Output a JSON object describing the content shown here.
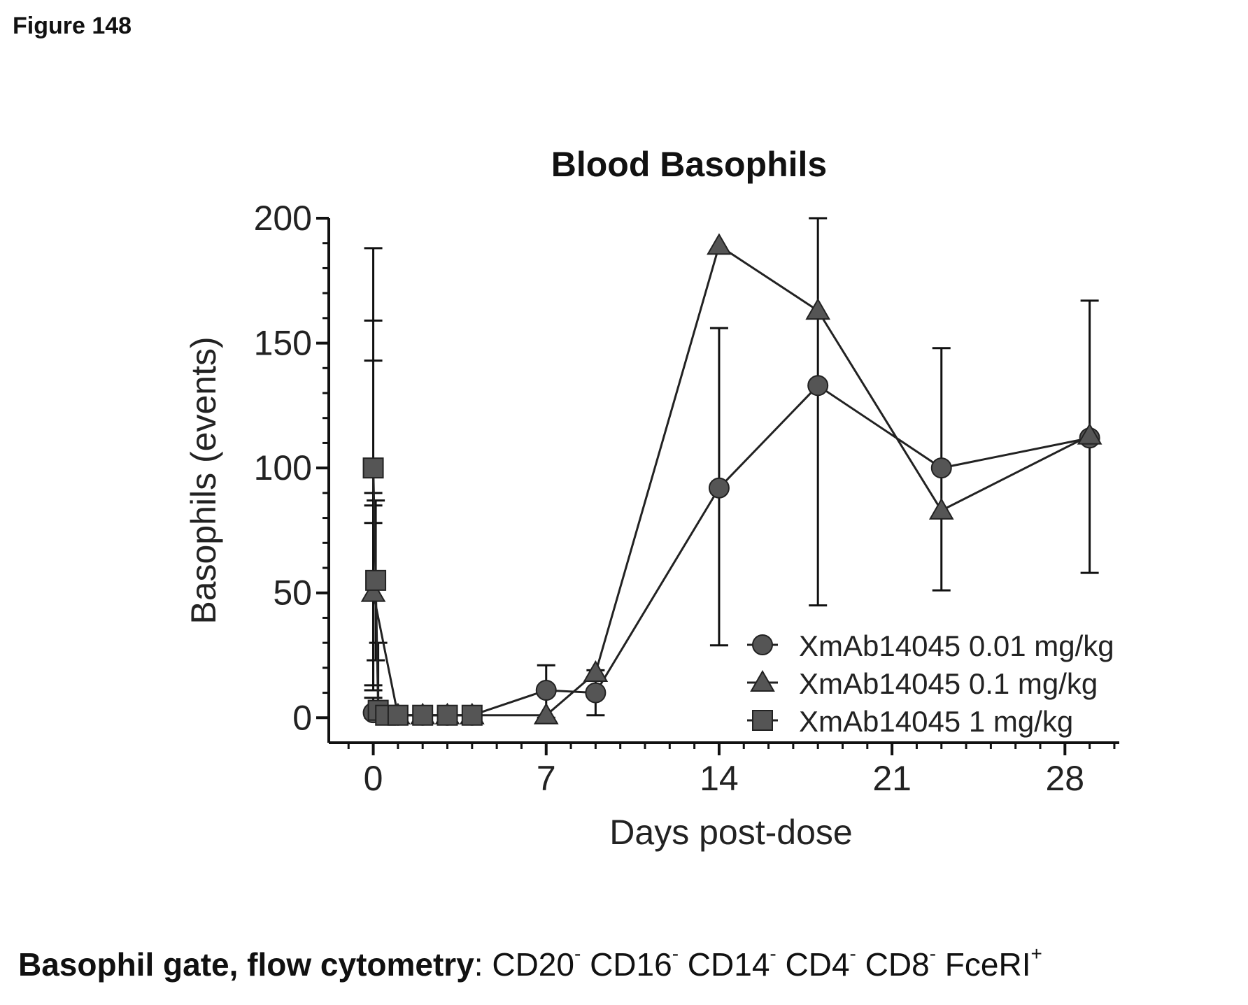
{
  "figure_label": "Figure 148",
  "chart_data": {
    "type": "line",
    "title": "Blood Basophils",
    "xlabel": "Days post-dose",
    "ylabel": "Basophils (events)",
    "xlim": [
      -1.8,
      30.2
    ],
    "ylim": [
      -10,
      200
    ],
    "xticks": [
      0,
      7,
      14,
      21,
      28
    ],
    "xtick_labels": [
      "0",
      "7",
      "14",
      "21",
      "28"
    ],
    "yticks": [
      0,
      50,
      100,
      150,
      200
    ],
    "ytick_labels": [
      "0",
      "50",
      "100",
      "150",
      "200"
    ],
    "legend_position": "bottom-right",
    "series": [
      {
        "name": "XmAb14045 0.01 mg/kg",
        "marker": "circle",
        "points": [
          {
            "x": 0,
            "y": 2,
            "err_low": 0,
            "err_high": 8
          },
          {
            "x": 1,
            "y": 1
          },
          {
            "x": 2,
            "y": 1
          },
          {
            "x": 3,
            "y": 1
          },
          {
            "x": 4,
            "y": 1
          },
          {
            "x": 7,
            "y": 11,
            "err_low": 0,
            "err_high": 21
          },
          {
            "x": 9,
            "y": 10,
            "err_low": 1,
            "err_high": 19
          },
          {
            "x": 14,
            "y": 92,
            "err_low": 29,
            "err_high": 156
          },
          {
            "x": 18,
            "y": 133,
            "err_low": 45,
            "err_high": 200
          },
          {
            "x": 23,
            "y": 100,
            "err_low": 51,
            "err_high": 148
          },
          {
            "x": 29,
            "y": 112,
            "err_low": 58,
            "err_high": 167
          }
        ]
      },
      {
        "name": "XmAb14045 0.1 mg/kg",
        "marker": "triangle",
        "points": [
          {
            "x": 0,
            "y": 50,
            "err_low": 11,
            "err_high": 90
          },
          {
            "x": 1,
            "y": 1
          },
          {
            "x": 2,
            "y": 1
          },
          {
            "x": 3,
            "y": 1
          },
          {
            "x": 4,
            "y": 1
          },
          {
            "x": 7,
            "y": 1
          },
          {
            "x": 9,
            "y": 18
          },
          {
            "x": 14,
            "y": 189
          },
          {
            "x": 18,
            "y": 163
          },
          {
            "x": 23,
            "y": 83
          },
          {
            "x": 29,
            "y": 113
          }
        ]
      },
      {
        "name": "XmAb14045 1 mg/kg",
        "marker": "square",
        "points": [
          {
            "x": 0,
            "y": 100,
            "err_low": 13,
            "err_high": 188
          },
          {
            "x": 0.1,
            "y": 55,
            "err_low": 23,
            "err_high": 87
          },
          {
            "x": 0.2,
            "y": 3,
            "err_low": 0,
            "err_high": 30
          },
          {
            "x": 0.5,
            "y": 1
          },
          {
            "x": 1,
            "y": 1
          },
          {
            "x": 2,
            "y": 1
          },
          {
            "x": 3,
            "y": 1
          },
          {
            "x": 4,
            "y": 1
          }
        ]
      }
    ],
    "extra_error_caps_at_day0": [
      159,
      143,
      85,
      78
    ]
  },
  "caption": {
    "bold": "Basophil gate, flow cytometry",
    "colon": ":",
    "markers": [
      {
        "name": "CD20",
        "sign": "-"
      },
      {
        "name": "CD16",
        "sign": "-"
      },
      {
        "name": "CD14",
        "sign": "-"
      },
      {
        "name": "CD4",
        "sign": "-"
      },
      {
        "name": "CD8",
        "sign": "-"
      },
      {
        "name": "FceRI",
        "sign": "+"
      }
    ]
  }
}
